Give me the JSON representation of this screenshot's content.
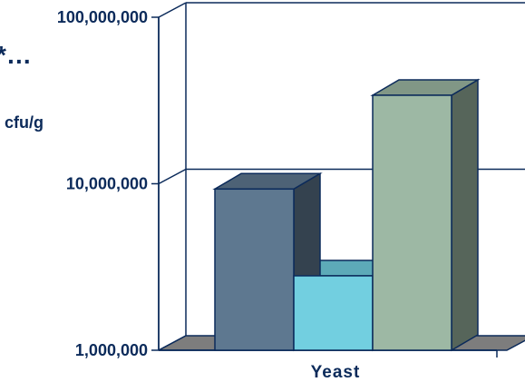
{
  "chart_data": {
    "type": "bar",
    "ylabel": "cfu/g",
    "y_scale": "log",
    "ylim": [
      1000000,
      100000000
    ],
    "yticks": [
      {
        "value": 100000000,
        "label": "100,000,000"
      },
      {
        "value": 10000000,
        "label": "10,000,000"
      },
      {
        "value": 1000000,
        "label": "1,000,000"
      }
    ],
    "categories": [
      "Yeast"
    ],
    "series": [
      {
        "values": [
          9300000
        ],
        "color": "#5e7890"
      },
      {
        "values": [
          2800000
        ],
        "color": "#72cfe0"
      },
      {
        "values": [
          34000000
        ],
        "color": "#9db8a4"
      }
    ],
    "grid": true,
    "style": "3d-column",
    "axis_color": "#0b2a5a"
  },
  "clipped_text": "*…"
}
